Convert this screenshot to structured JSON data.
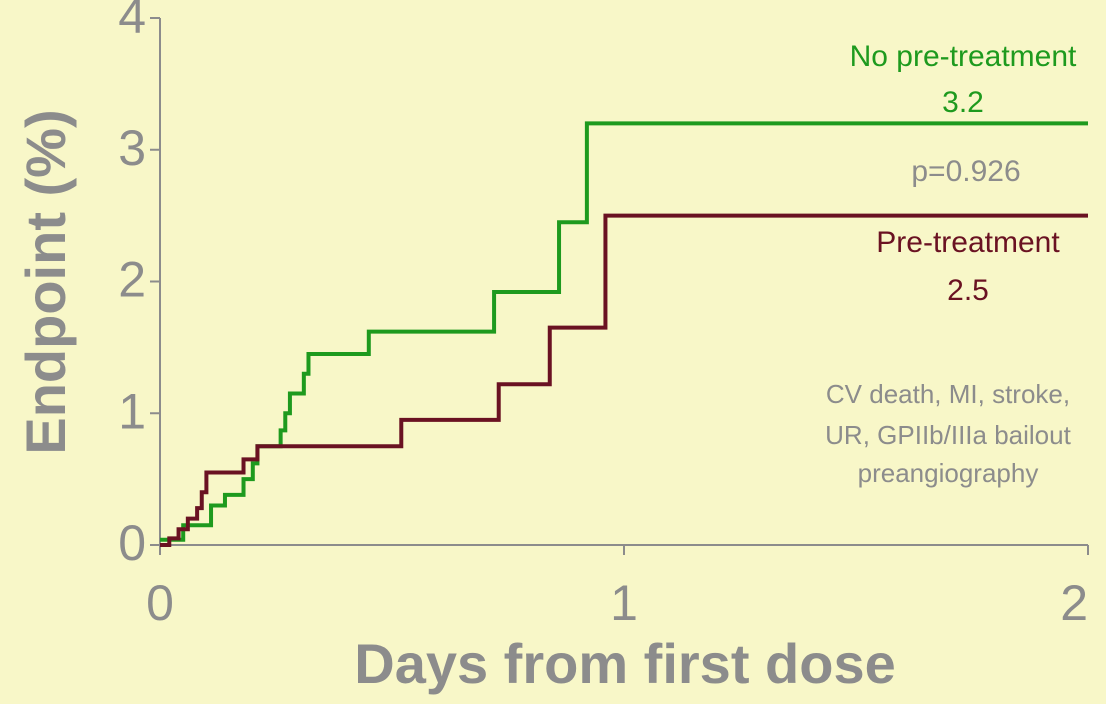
{
  "chart_data": {
    "type": "step-line",
    "x_label": "Days from first dose",
    "y_label": "Endpoint (%)",
    "xlim": [
      0,
      2
    ],
    "xticks": [
      0,
      1,
      2
    ],
    "ylim": [
      0,
      4
    ],
    "yticks": [
      0,
      1,
      2,
      3,
      4
    ],
    "series": [
      {
        "name": "No pre-treatment",
        "color": "#1e9a1e",
        "x": [
          0,
          0.05,
          0.11,
          0.14,
          0.18,
          0.2,
          0.21,
          0.26,
          0.27,
          0.28,
          0.31,
          0.32,
          0.45,
          0.72,
          0.86,
          0.92,
          2
        ],
        "values": [
          0.04,
          0.15,
          0.3,
          0.38,
          0.5,
          0.62,
          0.75,
          0.87,
          1.0,
          1.15,
          1.3,
          1.45,
          1.62,
          1.92,
          2.45,
          3.2,
          3.2
        ]
      },
      {
        "name": "Pre-treatment",
        "color": "#6a1222",
        "x": [
          0,
          0.02,
          0.04,
          0.06,
          0.08,
          0.09,
          0.1,
          0.18,
          0.21,
          0.52,
          0.73,
          0.84,
          0.96,
          2
        ],
        "values": [
          0,
          0.05,
          0.12,
          0.2,
          0.28,
          0.4,
          0.55,
          0.65,
          0.75,
          0.95,
          1.22,
          1.65,
          2.5,
          2.5
        ]
      }
    ],
    "annotations": [
      "p=0.926",
      "CV death, MI, stroke,",
      "UR, GPIIb/IIIa bailout",
      "preangiography"
    ]
  }
}
